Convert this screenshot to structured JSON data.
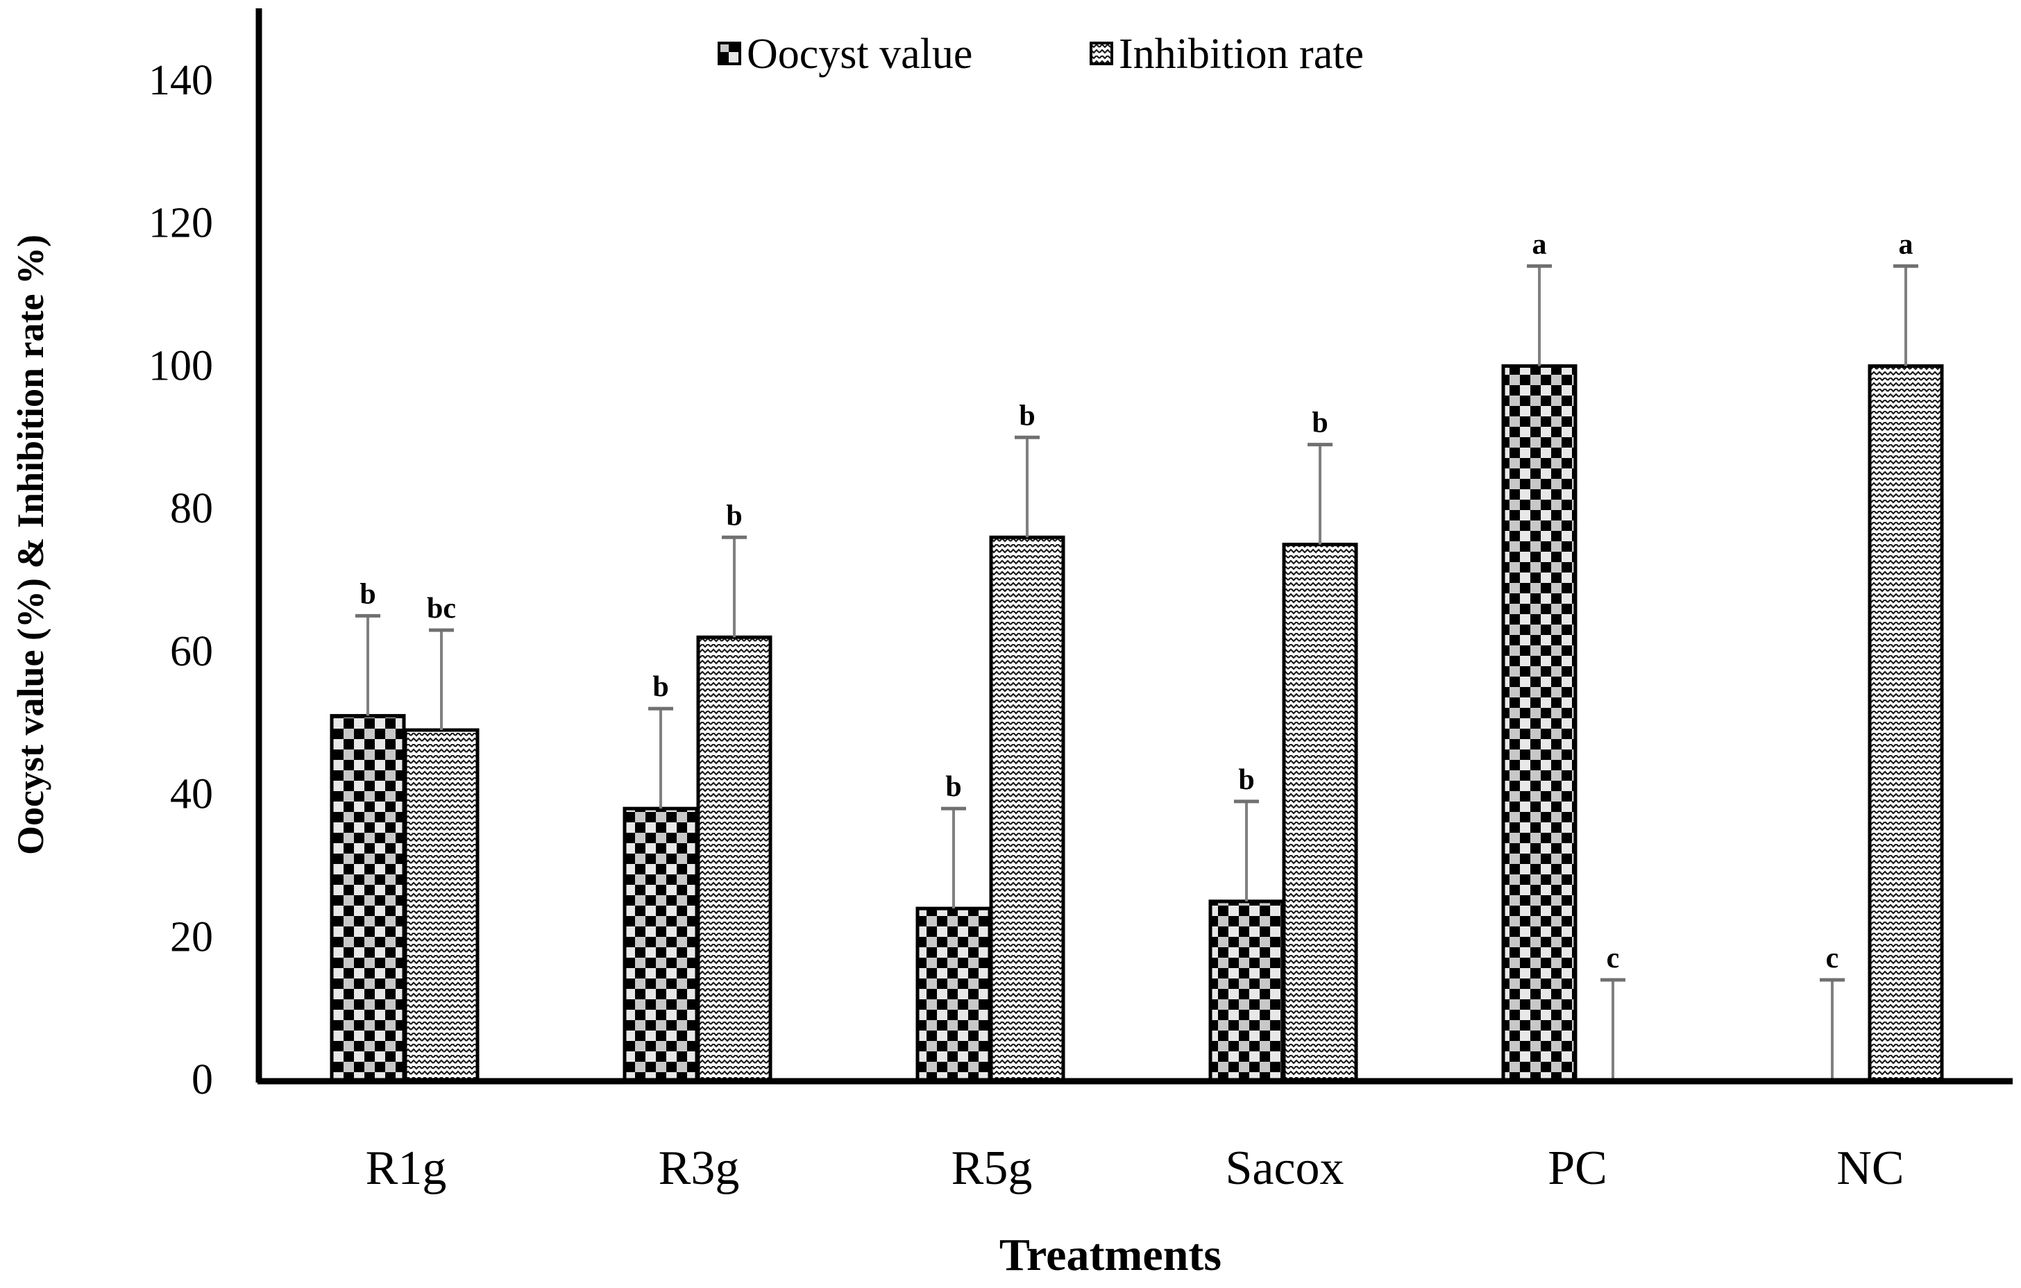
{
  "chart_data": {
    "type": "bar",
    "title": "",
    "xlabel": "Treatments",
    "ylabel": "Oocyst value (%) & Inhibition rate %)",
    "ylim": [
      0,
      140
    ],
    "yticks": [
      "0",
      "20",
      "40",
      "60",
      "80",
      "100",
      "120",
      "140"
    ],
    "categories": [
      "R1g",
      "R3g",
      "R5g",
      "Sacox",
      "PC",
      "NC"
    ],
    "legend_position": "top-center",
    "grid": false,
    "series": [
      {
        "name": "Oocyst value",
        "pattern": "checker",
        "values": [
          51,
          38,
          24,
          25,
          100,
          0
        ],
        "error_upper": [
          65,
          52,
          38,
          39,
          114,
          14
        ],
        "letters": [
          "b",
          "b",
          "b",
          "b",
          "a",
          "c"
        ]
      },
      {
        "name": "Inhibition rate",
        "pattern": "zigzag",
        "values": [
          49,
          62,
          76,
          75,
          0,
          100
        ],
        "error_upper": [
          63,
          76,
          90,
          89,
          14,
          114
        ],
        "letters": [
          "bc",
          "b",
          "b",
          "b",
          "c",
          "a"
        ]
      }
    ],
    "colors": {
      "bar_outline": "#000000",
      "error_bar": "#808080",
      "axis": "#000000"
    }
  }
}
